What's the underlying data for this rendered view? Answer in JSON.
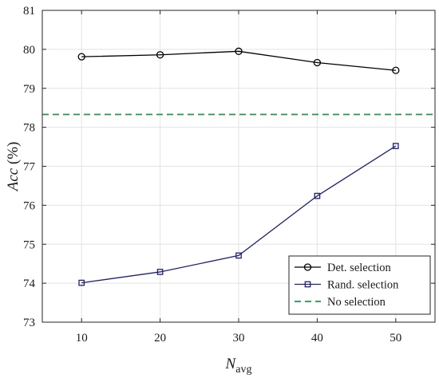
{
  "chart_data": {
    "type": "line",
    "x": [
      10,
      20,
      30,
      40,
      50
    ],
    "xlim": [
      5,
      55
    ],
    "ylim": [
      73,
      81
    ],
    "x_ticks": [
      "10",
      "20",
      "30",
      "40",
      "50"
    ],
    "y_ticks": [
      "73",
      "74",
      "75",
      "76",
      "77",
      "78",
      "79",
      "80",
      "81"
    ],
    "xlabel_main": "N",
    "xlabel_sub": "avg",
    "ylabel_main": "Acc",
    "ylabel_unit": " (%)",
    "grid": true,
    "legend_position": "bottom-right",
    "series": [
      {
        "name": "Det. selection",
        "values": [
          79.81,
          79.86,
          79.95,
          79.66,
          79.46
        ],
        "color": "#000000",
        "marker": "circle",
        "style": "solid"
      },
      {
        "name": "Rand. selection",
        "values": [
          74.01,
          74.29,
          74.71,
          76.24,
          77.52
        ],
        "color": "#1f1f7a",
        "marker": "square",
        "style": "solid"
      },
      {
        "name": "No selection",
        "constant": 78.33,
        "color": "#1e9a4a",
        "marker": "none",
        "style": "dashed"
      }
    ]
  }
}
